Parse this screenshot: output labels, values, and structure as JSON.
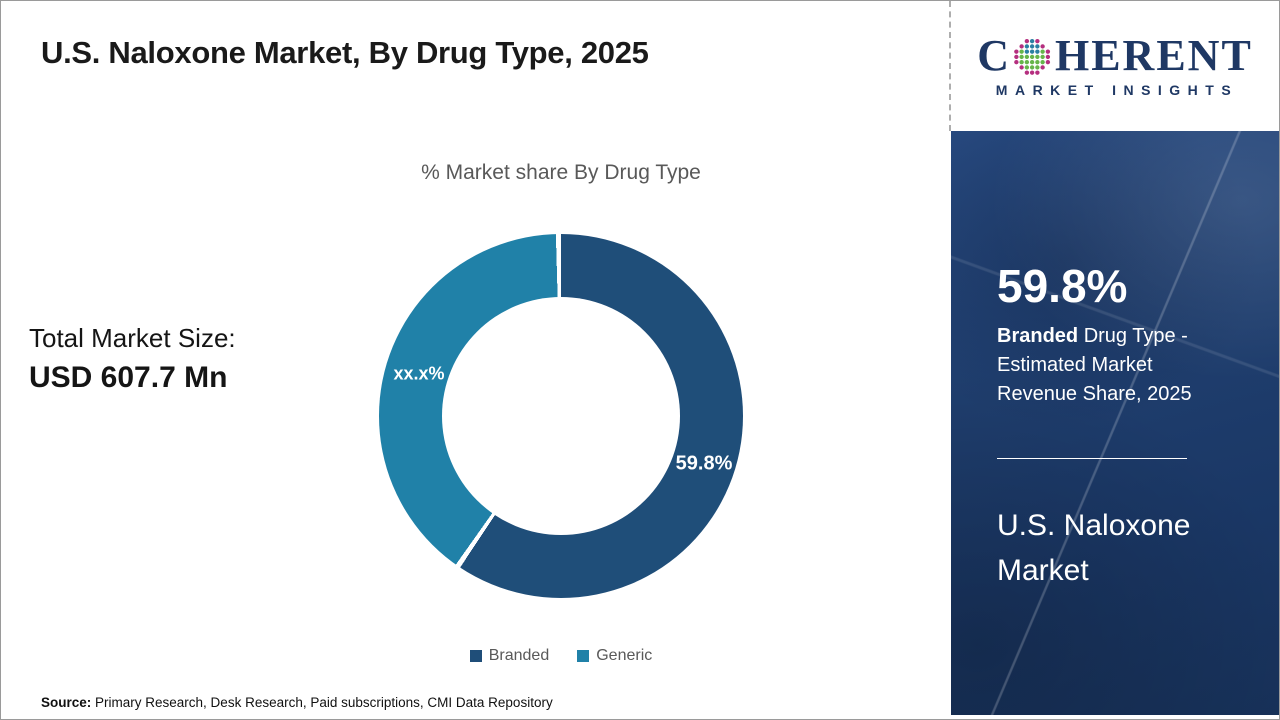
{
  "header": {
    "title": "U.S. Naloxone Market, By Drug Type, 2025"
  },
  "logo": {
    "word_start": "C",
    "word_end": "HERENT",
    "subtitle": "MARKET INSIGHTS",
    "brand_color": "#1F3864"
  },
  "chart_data": {
    "type": "pie",
    "donut": true,
    "title": "% Market share By Drug Type",
    "categories": [
      "Branded",
      "Generic"
    ],
    "values": [
      59.8,
      40.2
    ],
    "slice_display": [
      "59.8%",
      "xx.x%"
    ],
    "colors": [
      "#1F4E79",
      "#2081A8"
    ],
    "separator_color": "#ffffff",
    "start_angle_deg": 0,
    "direction": "clockwise",
    "legend_position": "bottom"
  },
  "left_panel": {
    "total_label": "Total Market Size:",
    "total_value": "USD 607.7 Mn"
  },
  "side_panel": {
    "stat_value": "59.8%",
    "stat_desc_bold": "Branded",
    "stat_desc_rest": "Drug Type - Estimated Market Revenue Share, 2025",
    "market_name": "U.S. Naloxone Market"
  },
  "footer": {
    "source_label": "Source:",
    "source_text": "Primary Research, Desk Research, Paid subscriptions, CMI Data Repository"
  }
}
